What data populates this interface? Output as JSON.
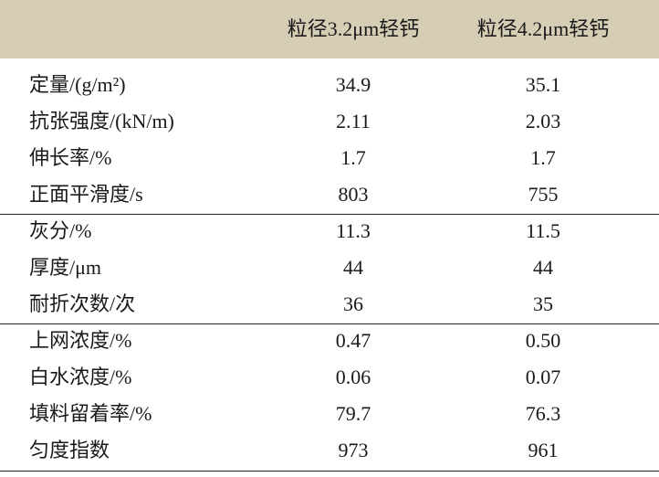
{
  "table": {
    "header": [
      "粒径3.2μm轻钙",
      "粒径4.2μm轻钙"
    ],
    "groups": [
      {
        "rows": [
          [
            "定量/(g/m²)",
            "34.9",
            "35.1"
          ],
          [
            "抗张强度/(kN/m)",
            "2.11",
            "2.03"
          ],
          [
            "伸长率/%",
            "1.7",
            "1.7"
          ],
          [
            "正面平滑度/s",
            "803",
            "755"
          ]
        ]
      },
      {
        "rows": [
          [
            "灰分/%",
            "11.3",
            "11.5"
          ],
          [
            "厚度/μm",
            "44",
            "44"
          ],
          [
            "耐折次数/次",
            "36",
            "35"
          ]
        ]
      },
      {
        "rows": [
          [
            "上网浓度/%",
            "0.47",
            "0.50"
          ],
          [
            "白水浓度/%",
            "0.06",
            "0.07"
          ],
          [
            "填料留着率/%",
            "79.7",
            "76.3"
          ],
          [
            "匀度指数",
            "973",
            "961"
          ]
        ]
      }
    ]
  }
}
